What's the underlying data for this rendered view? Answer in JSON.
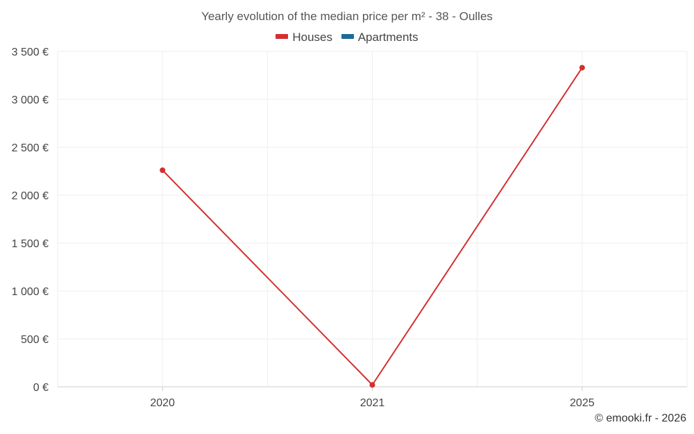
{
  "chart_data": {
    "type": "line",
    "title": "Yearly evolution of the median price per m² - 38 - Oulles",
    "xlabel": "",
    "ylabel": "",
    "categories": [
      "2020",
      "2021",
      "2025"
    ],
    "ylim": [
      0,
      3500
    ],
    "yticks": [
      0,
      500,
      1000,
      1500,
      2000,
      2500,
      3000,
      3500
    ],
    "ytick_labels": [
      "0 €",
      "500 €",
      "1 000 €",
      "1 500 €",
      "2 000 €",
      "2 500 €",
      "3 000 €",
      "3 500 €"
    ],
    "grid": true,
    "legend_position": "top-center",
    "series": [
      {
        "name": "Houses",
        "color": "#d32f2f",
        "values": [
          2260,
          20,
          3330
        ]
      },
      {
        "name": "Apartments",
        "color": "#1a6b9a",
        "values": [
          null,
          null,
          null
        ]
      }
    ]
  },
  "footer": {
    "copyright": "© emooki.fr - 2026"
  }
}
